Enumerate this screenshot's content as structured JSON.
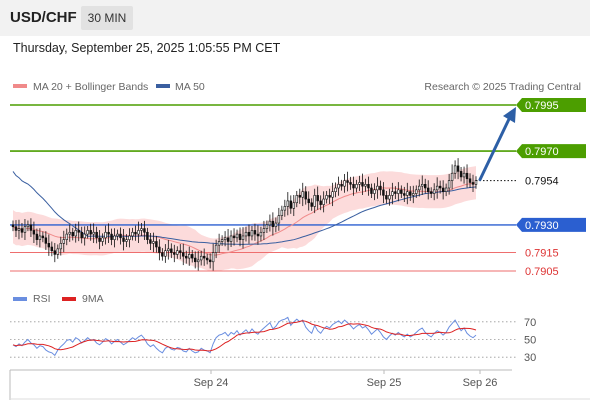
{
  "header": {
    "pair": "USD/CHF",
    "timeframe": "30 MIN",
    "timestamp": "Thursday, September 25, 2025 1:05:55 PM CET"
  },
  "legend": {
    "ma20_label": "MA 20 + Bollinger Bands",
    "ma50_label": "MA 50",
    "credit": "Research © 2025 Trading Central",
    "rsi_label": "RSI",
    "rsi_ma_label": "9MA"
  },
  "colors": {
    "resistance": "#4c9e00",
    "pivot": "#2b5fd0",
    "support": "#ee6e6e",
    "ma20": "#f08a8a",
    "bands": "#fbd5d5",
    "ma50": "#3a5fa0",
    "current": "#111111",
    "arrow": "#2d5fa6",
    "candle_up": "#ffffff",
    "candle_down": "#111111",
    "rsi": "#6a8ee0",
    "rsi_ma": "#dd2222"
  },
  "levels": [
    {
      "value": 0.7995,
      "label": "0.7995",
      "kind": "resistance"
    },
    {
      "value": 0.797,
      "label": "0.7970",
      "kind": "resistance"
    },
    {
      "value": 0.7954,
      "label": "0.7954",
      "kind": "current"
    },
    {
      "value": 0.793,
      "label": "0.7930",
      "kind": "pivot"
    },
    {
      "value": 0.7915,
      "label": "0.7915",
      "kind": "support"
    },
    {
      "value": 0.7905,
      "label": "0.7905",
      "kind": "support"
    }
  ],
  "chart_data": {
    "type": "candlestick",
    "instrument": "USD/CHF",
    "interval": "30 MIN",
    "price_range": [
      0.789,
      0.8005
    ],
    "x_ticks": [
      "Sep 24",
      "Sep 25",
      "Sep 26"
    ],
    "rsi_ticks": [
      70,
      50,
      30
    ],
    "rsi_range": [
      20,
      80
    ],
    "closes": [
      0.7929,
      0.7927,
      0.7928,
      0.7926,
      0.7929,
      0.793,
      0.7927,
      0.7925,
      0.7922,
      0.7924,
      0.7923,
      0.792,
      0.7918,
      0.7916,
      0.7914,
      0.7917,
      0.792,
      0.7922,
      0.7925,
      0.7926,
      0.7924,
      0.7927,
      0.7926,
      0.7923,
      0.7925,
      0.7927,
      0.7925,
      0.7926,
      0.7923,
      0.7921,
      0.7923,
      0.7926,
      0.7925,
      0.7922,
      0.7924,
      0.7925,
      0.7923,
      0.7921,
      0.7922,
      0.7924,
      0.7926,
      0.7925,
      0.7927,
      0.7928,
      0.7926,
      0.7922,
      0.792,
      0.7921,
      0.7918,
      0.7915,
      0.7913,
      0.7916,
      0.7917,
      0.7915,
      0.7914,
      0.7916,
      0.7915,
      0.7913,
      0.7912,
      0.7914,
      0.7912,
      0.791,
      0.7911,
      0.7913,
      0.7912,
      0.7911,
      0.791,
      0.7915,
      0.7919,
      0.7921,
      0.7922,
      0.7923,
      0.7921,
      0.7924,
      0.7923,
      0.7925,
      0.7922,
      0.7924,
      0.7926,
      0.7924,
      0.7927,
      0.7925,
      0.7924,
      0.7926,
      0.7928,
      0.793,
      0.7932,
      0.7929,
      0.7931,
      0.7935,
      0.7938,
      0.794,
      0.7943,
      0.7939,
      0.7942,
      0.7946,
      0.7945,
      0.7948,
      0.7944,
      0.7942,
      0.794,
      0.7946,
      0.7943,
      0.7941,
      0.7944,
      0.7946,
      0.7945,
      0.7948,
      0.795,
      0.7952,
      0.7951,
      0.7954,
      0.7953,
      0.7952,
      0.795,
      0.7952,
      0.7953,
      0.7951,
      0.7952,
      0.795,
      0.7947,
      0.7949,
      0.7951,
      0.7949,
      0.7946,
      0.7944,
      0.7946,
      0.7948,
      0.7947,
      0.7949,
      0.7947,
      0.7946,
      0.7948,
      0.7946,
      0.7947,
      0.7949,
      0.7951,
      0.7952,
      0.795,
      0.7948,
      0.7947,
      0.7949,
      0.7951,
      0.795,
      0.7948,
      0.795,
      0.7954,
      0.7958,
      0.7962,
      0.7959,
      0.7956,
      0.7958,
      0.7955,
      0.7953,
      0.7952,
      0.7954
    ],
    "rsi": [
      44,
      42,
      45,
      43,
      47,
      50,
      46,
      44,
      40,
      43,
      42,
      38,
      36,
      35,
      32,
      38,
      42,
      45,
      49,
      50,
      47,
      52,
      50,
      46,
      49,
      52,
      49,
      50,
      46,
      44,
      47,
      51,
      49,
      45,
      48,
      50,
      47,
      44,
      46,
      49,
      52,
      50,
      53,
      55,
      51,
      45,
      42,
      44,
      40,
      37,
      35,
      40,
      42,
      39,
      38,
      41,
      40,
      37,
      36,
      40,
      37,
      35,
      36,
      40,
      38,
      37,
      35,
      45,
      52,
      55,
      56,
      58,
      54,
      58,
      56,
      60,
      55,
      58,
      61,
      57,
      62,
      58,
      56,
      60,
      63,
      66,
      69,
      62,
      65,
      70,
      72,
      73,
      75,
      66,
      70,
      73,
      70,
      72,
      64,
      60,
      57,
      66,
      60,
      57,
      62,
      65,
      63,
      67,
      69,
      71,
      68,
      72,
      69,
      66,
      62,
      65,
      67,
      63,
      65,
      61,
      56,
      59,
      62,
      58,
      53,
      50,
      54,
      57,
      55,
      58,
      55,
      53,
      56,
      53,
      55,
      58,
      61,
      63,
      58,
      55,
      53,
      57,
      60,
      58,
      55,
      58,
      64,
      68,
      72,
      66,
      60,
      63,
      57,
      54,
      52,
      55
    ]
  }
}
